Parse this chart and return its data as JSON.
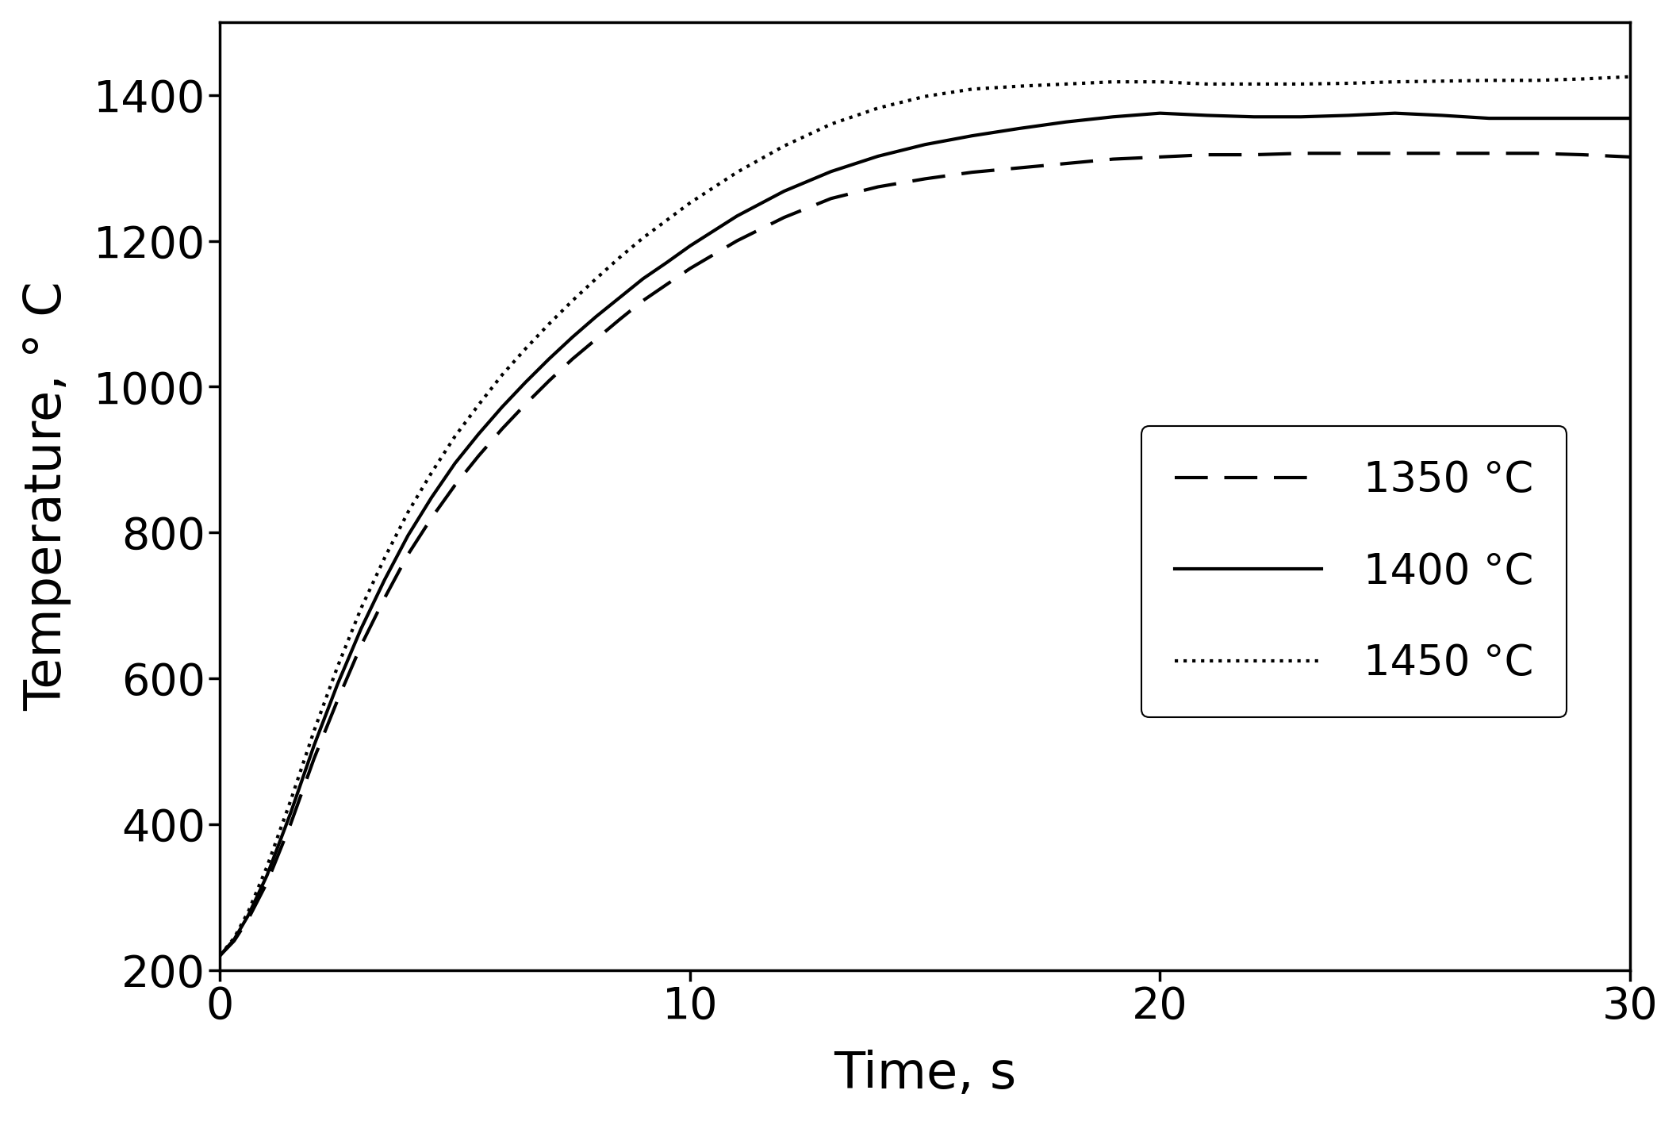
{
  "xlabel": "Time, s",
  "ylabel": "Temperature, ° C",
  "xlim": [
    0,
    30
  ],
  "ylim": [
    200,
    1500
  ],
  "yticks": [
    200,
    400,
    600,
    800,
    1000,
    1200,
    1400
  ],
  "xticks": [
    0,
    10,
    20,
    30
  ],
  "legend_labels": [
    "1350 °C",
    "1400 °C",
    "1450 °C"
  ],
  "line_color": "#000000",
  "linewidth": 3.0,
  "background_color": "#ffffff",
  "curve_1350_t": [
    0,
    0.3,
    0.6,
    1.0,
    1.5,
    2.0,
    2.5,
    3.0,
    3.5,
    4.0,
    4.5,
    5.0,
    5.5,
    6.0,
    6.5,
    7.0,
    7.5,
    8.0,
    8.5,
    9.0,
    9.5,
    10.0,
    11.0,
    12.0,
    13.0,
    14.0,
    15.0,
    16.0,
    17.0,
    18.0,
    19.0,
    20.0,
    21.0,
    22.0,
    23.0,
    24.0,
    25.0,
    26.0,
    27.0,
    28.0,
    29.0,
    30.0
  ],
  "curve_1350_T": [
    220,
    240,
    270,
    320,
    400,
    490,
    570,
    645,
    710,
    770,
    820,
    865,
    905,
    942,
    976,
    1008,
    1038,
    1065,
    1092,
    1118,
    1140,
    1162,
    1200,
    1232,
    1258,
    1274,
    1285,
    1294,
    1300,
    1306,
    1312,
    1315,
    1318,
    1318,
    1320,
    1320,
    1320,
    1320,
    1320,
    1320,
    1318,
    1315
  ],
  "curve_1400_t": [
    0,
    0.3,
    0.6,
    1.0,
    1.5,
    2.0,
    2.5,
    3.0,
    3.5,
    4.0,
    4.5,
    5.0,
    5.5,
    6.0,
    6.5,
    7.0,
    7.5,
    8.0,
    8.5,
    9.0,
    9.5,
    10.0,
    11.0,
    12.0,
    13.0,
    14.0,
    15.0,
    16.0,
    17.0,
    18.0,
    19.0,
    20.0,
    21.0,
    22.0,
    23.0,
    24.0,
    25.0,
    26.0,
    27.0,
    28.0,
    29.0,
    30.0
  ],
  "curve_1400_T": [
    220,
    242,
    275,
    330,
    415,
    508,
    592,
    668,
    735,
    796,
    848,
    895,
    935,
    972,
    1006,
    1038,
    1068,
    1096,
    1122,
    1148,
    1170,
    1193,
    1234,
    1268,
    1295,
    1316,
    1332,
    1344,
    1354,
    1363,
    1370,
    1375,
    1372,
    1370,
    1370,
    1372,
    1375,
    1372,
    1368,
    1368,
    1368,
    1368
  ],
  "curve_1450_t": [
    0,
    0.3,
    0.6,
    1.0,
    1.5,
    2.0,
    2.5,
    3.0,
    3.5,
    4.0,
    4.5,
    5.0,
    5.5,
    6.0,
    6.5,
    7.0,
    7.5,
    8.0,
    8.5,
    9.0,
    9.5,
    10.0,
    11.0,
    12.0,
    13.0,
    14.0,
    15.0,
    16.0,
    17.0,
    18.0,
    19.0,
    20.0,
    21.0,
    22.0,
    23.0,
    24.0,
    25.0,
    26.0,
    27.0,
    28.0,
    29.0,
    30.0
  ],
  "curve_1450_T": [
    220,
    244,
    280,
    342,
    432,
    528,
    616,
    696,
    765,
    828,
    882,
    932,
    975,
    1016,
    1052,
    1086,
    1118,
    1148,
    1177,
    1204,
    1228,
    1252,
    1294,
    1330,
    1360,
    1382,
    1398,
    1408,
    1412,
    1415,
    1418,
    1418,
    1415,
    1415,
    1415,
    1416,
    1418,
    1419,
    1420,
    1420,
    1422,
    1425
  ]
}
